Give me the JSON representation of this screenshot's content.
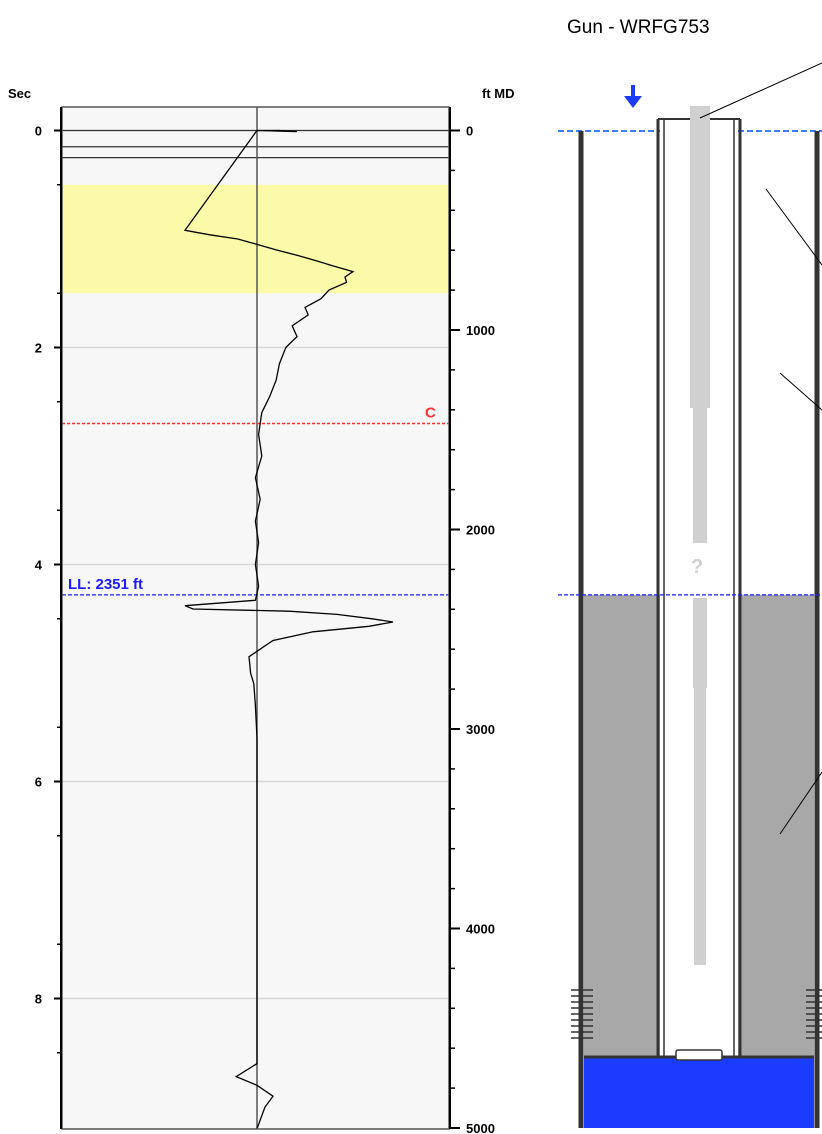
{
  "chart_data": {
    "type": "line",
    "left_axis_label": "Sec",
    "right_axis_label": "ft MD",
    "left_ticks": [
      "0",
      "2",
      "4",
      "6",
      "8"
    ],
    "left_tick_values": [
      0,
      2,
      4,
      6,
      8
    ],
    "right_ticks": [
      "0",
      "1000",
      "2000",
      "3000",
      "4000",
      "5000"
    ],
    "right_tick_values": [
      0,
      1000,
      2000,
      3000,
      4000,
      5000
    ],
    "time_range_sec": [
      -0.2,
      9.2
    ],
    "depth_range_ft": [
      -120,
      5050
    ],
    "grid": true,
    "highlight_band_sec": [
      0.5,
      1.5
    ],
    "highlight_color": "#fbfaa8",
    "lines_at_sec": [
      0.15,
      0.25
    ],
    "collar_marker": {
      "label": "C",
      "sec": 2.7,
      "color": "#ff3030"
    },
    "liquid_level": {
      "label": "LL: 2351 ft",
      "sec": 4.28,
      "depth_ft": 2351,
      "color": "#1a1aff"
    },
    "series": [
      {
        "points": [
          [
            0.0,
            0
          ],
          [
            0.01,
            25
          ],
          [
            0.0,
            14
          ],
          [
            0.0,
            0
          ],
          [
            0.92,
            -45
          ],
          [
            0.96,
            -30
          ],
          [
            1.0,
            -12
          ],
          [
            1.05,
            0
          ],
          [
            1.1,
            12
          ],
          [
            1.15,
            25
          ],
          [
            1.2,
            37
          ],
          [
            1.25,
            48
          ],
          [
            1.3,
            60
          ],
          [
            1.35,
            55
          ],
          [
            1.4,
            56
          ],
          [
            1.47,
            45
          ],
          [
            1.55,
            40
          ],
          [
            1.63,
            30
          ],
          [
            1.7,
            32
          ],
          [
            1.8,
            22
          ],
          [
            1.9,
            25
          ],
          [
            2.0,
            18
          ],
          [
            2.15,
            14
          ],
          [
            2.3,
            12
          ],
          [
            2.45,
            8
          ],
          [
            2.6,
            3
          ],
          [
            2.8,
            1
          ],
          [
            3.0,
            3
          ],
          [
            3.2,
            -1
          ],
          [
            3.4,
            2
          ],
          [
            3.6,
            -1
          ],
          [
            3.8,
            1
          ],
          [
            4.0,
            -1
          ],
          [
            4.2,
            1
          ],
          [
            4.33,
            -1
          ],
          [
            4.38,
            -45
          ],
          [
            4.41,
            -40
          ],
          [
            4.43,
            20
          ],
          [
            4.46,
            50
          ],
          [
            4.5,
            72
          ],
          [
            4.53,
            85
          ],
          [
            4.57,
            70
          ],
          [
            4.62,
            35
          ],
          [
            4.7,
            10
          ],
          [
            4.85,
            -5
          ],
          [
            5.0,
            -4
          ],
          [
            5.1,
            -2
          ],
          [
            5.3,
            -1
          ],
          [
            5.6,
            0
          ],
          [
            6.0,
            0
          ],
          [
            7.0,
            0
          ],
          [
            8.0,
            0
          ],
          [
            8.6,
            0
          ],
          [
            8.72,
            -13
          ],
          [
            8.8,
            0
          ],
          [
            8.9,
            10
          ],
          [
            9.0,
            5
          ],
          [
            9.2,
            0
          ]
        ]
      }
    ]
  },
  "wellbore": {
    "gun_label": "Gun - WRFG753",
    "unknown_marker": "?",
    "liquid_fill_color": "#a8a8a8",
    "bottom_fluid_color": "#1a3cff",
    "arrow_color": "#1a3cff"
  }
}
